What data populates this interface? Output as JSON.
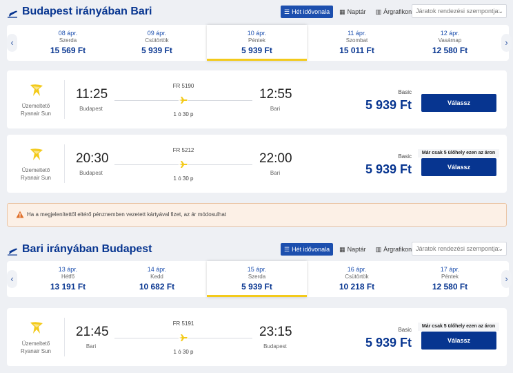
{
  "outbound": {
    "title": "Budapest irányában Bari",
    "view_tabs": [
      {
        "label": "Hét idővonala",
        "icon": "list-icon",
        "active": true
      },
      {
        "label": "Naptár",
        "icon": "calendar-icon",
        "active": false
      },
      {
        "label": "Árgrafikon",
        "icon": "bar-chart-icon",
        "active": false
      }
    ],
    "sort_placeholder": "Járatok rendezési szempontja:",
    "dates": [
      {
        "date": "08 ápr.",
        "day": "Szerda",
        "price": "15 569 Ft",
        "selected": false
      },
      {
        "date": "09 ápr.",
        "day": "Csütörtök",
        "price": "5 939 Ft",
        "selected": false
      },
      {
        "date": "10 ápr.",
        "day": "Péntek",
        "price": "5 939 Ft",
        "selected": true
      },
      {
        "date": "11 ápr.",
        "day": "Szombat",
        "price": "15 011 Ft",
        "selected": false
      },
      {
        "date": "12 ápr.",
        "day": "Vasárnap",
        "price": "12 580 Ft",
        "selected": false
      }
    ],
    "flights": [
      {
        "operator_label": "Üzemeltető",
        "operator": "Ryanair Sun",
        "flight_no": "FR 5190",
        "dep_time": "11:25",
        "dep_city": "Budapest",
        "arr_time": "12:55",
        "arr_city": "Bari",
        "duration": "1 ó 30 p",
        "fare_label": "Basic",
        "price": "5 939 Ft",
        "seat_badge": "",
        "button": "Válassz"
      },
      {
        "operator_label": "Üzemeltető",
        "operator": "Ryanair Sun",
        "flight_no": "FR 5212",
        "dep_time": "20:30",
        "dep_city": "Budapest",
        "arr_time": "22:00",
        "arr_city": "Bari",
        "duration": "1 ó 30 p",
        "fare_label": "Basic",
        "price": "5 939 Ft",
        "seat_badge": "Már csak 5 ülőhely ezen az áron",
        "button": "Válassz"
      }
    ]
  },
  "alert": {
    "icon": "warning-icon",
    "text": "Ha a megjelenítettől eltérő pénznemben vezetett kártyával fizet, az ár módosulhat"
  },
  "inbound": {
    "title": "Bari irányában Budapest",
    "view_tabs": [
      {
        "label": "Hét idővonala",
        "icon": "list-icon",
        "active": true
      },
      {
        "label": "Naptár",
        "icon": "calendar-icon",
        "active": false
      },
      {
        "label": "Árgrafikon",
        "icon": "bar-chart-icon",
        "active": false
      }
    ],
    "sort_placeholder": "Járatok rendezési szempontja:",
    "dates": [
      {
        "date": "13 ápr.",
        "day": "Hétfő",
        "price": "13 191 Ft",
        "selected": false
      },
      {
        "date": "14 ápr.",
        "day": "Kedd",
        "price": "10 682 Ft",
        "selected": false
      },
      {
        "date": "15 ápr.",
        "day": "Szerda",
        "price": "5 939 Ft",
        "selected": true
      },
      {
        "date": "16 ápr.",
        "day": "Csütörtök",
        "price": "10 218 Ft",
        "selected": false
      },
      {
        "date": "17 ápr.",
        "day": "Péntek",
        "price": "12 580 Ft",
        "selected": false
      }
    ],
    "flights": [
      {
        "operator_label": "Üzemeltető",
        "operator": "Ryanair Sun",
        "flight_no": "FR 5191",
        "dep_time": "21:45",
        "dep_city": "Bari",
        "arr_time": "23:15",
        "arr_city": "Budapest",
        "duration": "1 ó 30 p",
        "fare_label": "Basic",
        "price": "5 939 Ft",
        "seat_badge": "Már csak 5 ülőhely ezen az áron",
        "button": "Válassz"
      }
    ]
  },
  "colors": {
    "brand": "#073590",
    "accent": "#f3ca1b",
    "active_tab": "#1c4fae"
  }
}
